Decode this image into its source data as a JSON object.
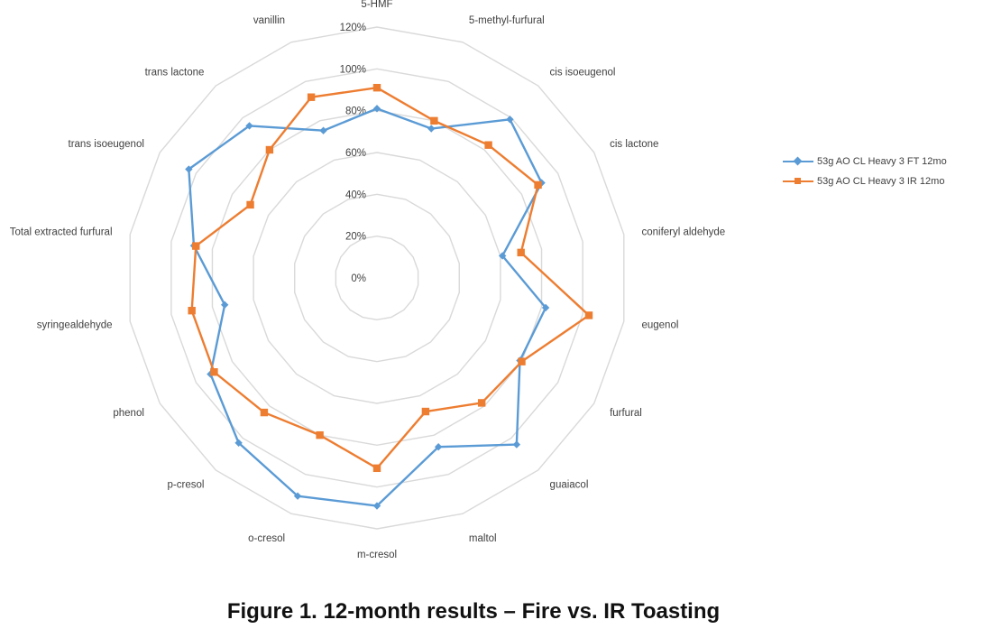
{
  "caption": "Figure 1. 12-month results – Fire vs. IR Toasting",
  "chart_data": {
    "type": "radar",
    "title": "",
    "categories": [
      "5-HMF",
      "5-methyl-furfural",
      "cis isoeugenol",
      "cis lactone",
      "coniferyl aldehyde",
      "eugenol",
      "furfural",
      "guaiacol",
      "maltol",
      "m-cresol",
      "o-cresol",
      "p-cresol",
      "phenol",
      "syringealdehyde",
      "Total extracted furfural",
      "trans isoeugenol",
      "trans lactone",
      "vanillin"
    ],
    "rlim": [
      0,
      120
    ],
    "ticks": [
      0,
      20,
      40,
      60,
      80,
      100,
      120
    ],
    "tick_labels": [
      "0%",
      "20%",
      "40%",
      "60%",
      "80%",
      "100%",
      "120%"
    ],
    "grid": true,
    "legend_position": "right",
    "series": [
      {
        "name": "53g AO CL Heavy 3 FT 12mo",
        "color": "#5B9BD5",
        "marker": "diamond",
        "values": [
          81,
          76,
          99,
          91,
          61,
          82,
          79,
          104,
          86,
          109,
          111,
          103,
          92,
          74,
          89,
          104,
          95,
          75
        ]
      },
      {
        "name": "53g AO CL Heavy 3 IR 12mo",
        "color": "#ED7D31",
        "marker": "square",
        "values": [
          91,
          80,
          83,
          89,
          70,
          103,
          80,
          78,
          68,
          91,
          80,
          84,
          90,
          90,
          88,
          70,
          80,
          92
        ]
      }
    ]
  }
}
